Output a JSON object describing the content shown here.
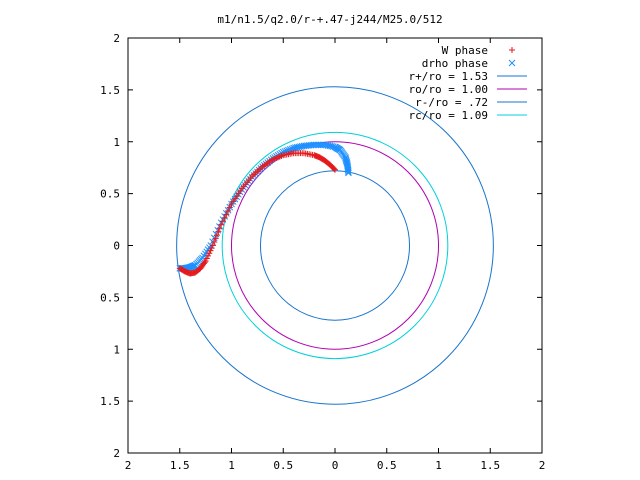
{
  "chart_data": {
    "type": "scatter",
    "title": "m1/n1.5/q2.0/r-+.47-j244/M25.0/512",
    "xlabel": "",
    "ylabel": "",
    "xlim": [
      -2,
      2
    ],
    "ylim": [
      -2,
      2
    ],
    "x_ticks": [
      "2",
      "1.5",
      "1",
      "0.5",
      "0",
      "0.5",
      "1",
      "1.5",
      "2"
    ],
    "y_ticks": [
      "2",
      "1.5",
      "1",
      "0.5",
      "0",
      "0.5",
      "1",
      "1.5",
      "2"
    ],
    "grid": false,
    "legend_position": "top-right",
    "legend": [
      {
        "label": "W phase",
        "marker": "+",
        "color": "#e41a1c"
      },
      {
        "label": "drho phase",
        "marker": "x",
        "color": "#1e90ff"
      },
      {
        "label": "r+/ro = 1.53",
        "line": true,
        "color": "#1874cd"
      },
      {
        "label": "ro/ro = 1.00",
        "line": true,
        "color": "#b000b0"
      },
      {
        "label": "r-/ro = .72",
        "line": true,
        "color": "#1874cd"
      },
      {
        "label": "rc/ro = 1.09",
        "line": true,
        "color": "#00d0d8"
      }
    ],
    "circles": [
      {
        "r": 1.53,
        "color": "#1874cd"
      },
      {
        "r": 1.0,
        "color": "#b000b0"
      },
      {
        "r": 0.72,
        "color": "#1874cd"
      },
      {
        "r": 1.09,
        "color": "#00d0d8"
      }
    ],
    "series": [
      {
        "name": "W phase",
        "color": "#e41a1c",
        "marker": "+",
        "x": [
          0.0,
          -0.05,
          -0.1,
          -0.15,
          -0.2,
          -0.3,
          -0.4,
          -0.5,
          -0.6,
          -0.7,
          -0.8,
          -0.9,
          -1.0,
          -1.1,
          -1.18,
          -1.25,
          -1.3,
          -1.35,
          -1.4,
          -1.45,
          -1.5
        ],
        "y": [
          0.73,
          0.78,
          0.82,
          0.85,
          0.87,
          0.89,
          0.89,
          0.87,
          0.83,
          0.76,
          0.67,
          0.55,
          0.4,
          0.2,
          0.0,
          -0.15,
          -0.22,
          -0.26,
          -0.27,
          -0.25,
          -0.22
        ]
      },
      {
        "name": "drho phase",
        "color": "#1e90ff",
        "marker": "x",
        "x": [
          0.13,
          0.12,
          0.1,
          0.05,
          0.0,
          -0.1,
          -0.2,
          -0.3,
          -0.4,
          -0.5,
          -0.6,
          -0.7,
          -0.8,
          -0.9,
          -1.0,
          -1.1,
          -1.2,
          -1.28,
          -1.35,
          -1.4,
          -1.45,
          -1.5
        ],
        "y": [
          0.7,
          0.78,
          0.85,
          0.92,
          0.95,
          0.97,
          0.97,
          0.96,
          0.94,
          0.9,
          0.84,
          0.76,
          0.66,
          0.54,
          0.4,
          0.22,
          0.0,
          -0.12,
          -0.19,
          -0.21,
          -0.22,
          -0.22
        ]
      }
    ]
  }
}
